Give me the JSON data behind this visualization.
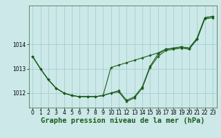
{
  "title": "Graphe pression niveau de la mer (hPa)",
  "bg_color": "#cce8e8",
  "grid_color": "#99cccc",
  "line_color": "#1a5c1a",
  "xlim": [
    -0.5,
    23.5
  ],
  "ylim": [
    1011.4,
    1015.6
  ],
  "yticks": [
    1012,
    1013,
    1014
  ],
  "xticks": [
    0,
    1,
    2,
    3,
    4,
    5,
    6,
    7,
    8,
    9,
    10,
    11,
    12,
    13,
    14,
    15,
    16,
    17,
    18,
    19,
    20,
    21,
    22,
    23
  ],
  "series": [
    [
      1013.5,
      1013.0,
      1012.55,
      1012.2,
      1012.0,
      1011.9,
      1011.85,
      1011.85,
      1011.85,
      1011.9,
      1012.0,
      1012.1,
      1011.7,
      1011.85,
      1012.25,
      1013.1,
      1013.6,
      1013.8,
      1013.85,
      1013.9,
      1013.85,
      1014.25,
      1015.1,
      1015.15
    ],
    [
      1013.5,
      1013.0,
      1012.55,
      1012.2,
      1012.0,
      1011.9,
      1011.85,
      1011.85,
      1011.85,
      1011.9,
      1013.05,
      1013.15,
      1013.25,
      1013.35,
      1013.45,
      1013.55,
      1013.65,
      1013.8,
      1013.85,
      1013.9,
      1013.85,
      1014.25,
      1015.1,
      1015.15
    ],
    [
      1013.5,
      1013.0,
      1012.55,
      1012.2,
      1012.0,
      1011.9,
      1011.85,
      1011.85,
      1011.85,
      1011.9,
      1012.0,
      1012.05,
      1011.65,
      1011.8,
      1012.2,
      1013.05,
      1013.5,
      1013.75,
      1013.8,
      1013.85,
      1013.8,
      1014.2,
      1015.05,
      1015.1
    ]
  ],
  "tick_fontsize": 5.5,
  "xlabel_fontsize": 7.5,
  "linewidth": 0.8,
  "markersize": 1.8
}
